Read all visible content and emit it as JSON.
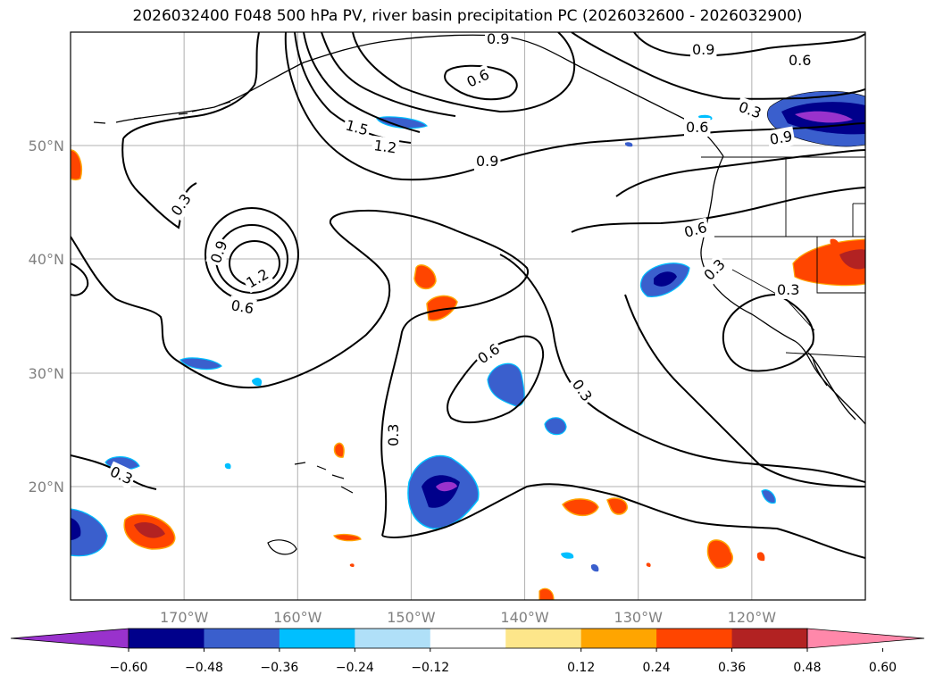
{
  "title": "2026032400 F048 500 hPa PV, river basin precipitation PC (2026032600 - 2026032900)",
  "axes": {
    "lat_labels": [
      {
        "lat": 50,
        "label": "50°N"
      },
      {
        "lat": 40,
        "label": "40°N"
      },
      {
        "lat": 30,
        "label": "30°N"
      },
      {
        "lat": 20,
        "label": "20°N"
      }
    ],
    "lon_labels": [
      {
        "lon": -170,
        "label": "170°W"
      },
      {
        "lon": -160,
        "label": "160°W"
      },
      {
        "lon": -150,
        "label": "150°W"
      },
      {
        "lon": -140,
        "label": "140°W"
      },
      {
        "lon": -130,
        "label": "130°W"
      },
      {
        "lon": -120,
        "label": "120°W"
      }
    ],
    "extent": {
      "lon_min": -180,
      "lon_max": -110,
      "lat_min": 10,
      "lat_max": 60
    },
    "grid": true
  },
  "contour_labels": [
    "0.9",
    "0.6",
    "0.9",
    "0.6",
    "0.3",
    "1.5",
    "1.2",
    "0.9",
    "0.6",
    "0.9",
    "0.3",
    "0.9",
    "1.2",
    "0.6",
    "0.6",
    "0.3",
    "0.3",
    "0.6",
    "0.3",
    "0.3",
    "0.3"
  ],
  "colorbar": {
    "ticks": [
      "−0.60",
      "−0.48",
      "−0.36",
      "−0.24",
      "−0.12",
      "0.12",
      "0.24",
      "0.36",
      "0.48",
      "0.60"
    ],
    "colors": [
      "#9932cc",
      "#00008b",
      "#3a5fcd",
      "#00bfff",
      "#b0e0f8",
      "#ffffff",
      "#fde68a",
      "#ffa500",
      "#ff4500",
      "#b22222",
      "#ff88aa"
    ]
  }
}
